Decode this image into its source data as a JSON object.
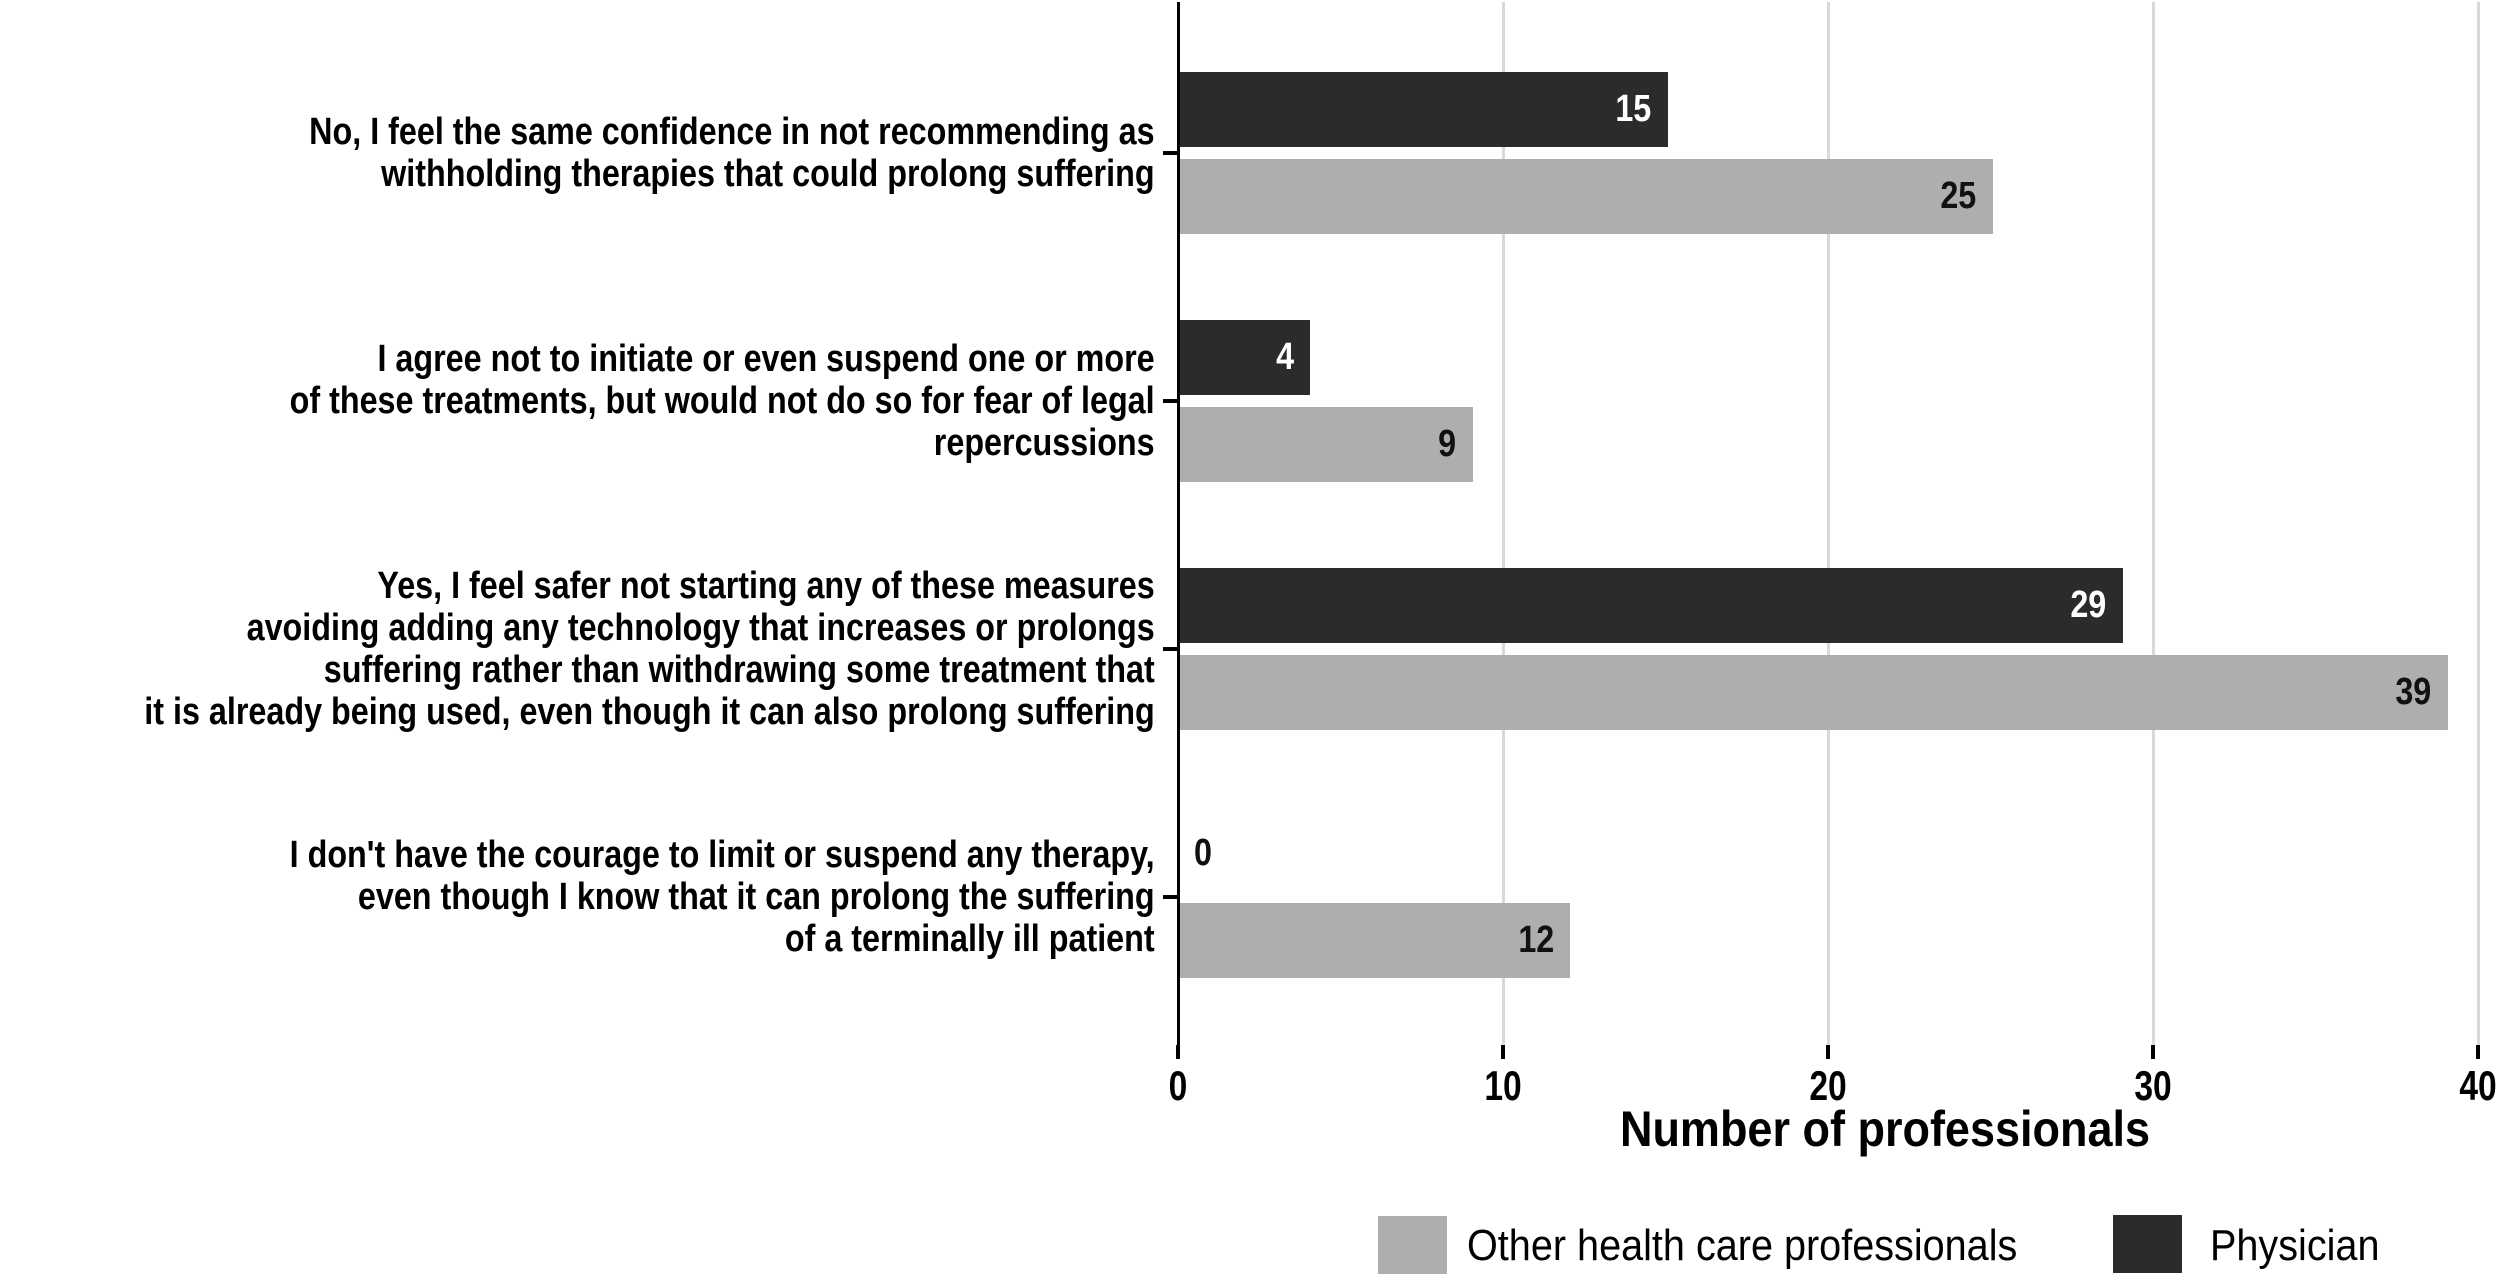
{
  "chart_data": {
    "type": "bar",
    "orientation": "horizontal",
    "xlabel": "Number of professionals",
    "xlim": [
      0,
      40
    ],
    "xticks": [
      0,
      10,
      20,
      30,
      40
    ],
    "grid": "vertical-lines-on",
    "legend_position": "bottom-right",
    "categories": [
      "No, I feel the same confidence in not recommending as\nwithholding therapies that could prolong suffering",
      "I agree not to initiate or even suspend one or more\nof these treatments, but would not do so for fear of legal\nrepercussions",
      "Yes, I feel safer not starting any of these measures\navoiding adding any technology that increases or prolongs\nsuffering rather than withdrawing some treatment that\nit is already being used, even though it can also prolong suffering",
      "I don't have the courage to limit or suspend any therapy,\neven though I know that it can prolong the suffering\nof a terminally ill patient"
    ],
    "series": [
      {
        "name": "Physician",
        "color": "#2b2b2b",
        "value_label_color": "#ffffff",
        "values": [
          15,
          4,
          29,
          0
        ]
      },
      {
        "name": "Other health care professionals",
        "color": "#aeaeae",
        "value_label_color": "#111111",
        "values": [
          25,
          9,
          39,
          12
        ]
      }
    ],
    "legend": [
      {
        "label": "Other health care professionals",
        "color": "#aeaeae"
      },
      {
        "label": "Physician",
        "color": "#2b2b2b"
      }
    ],
    "colors": {
      "gridline": "#d9d9d9",
      "axis": "#000000",
      "text": "#000000",
      "background": "#ffffff"
    }
  }
}
